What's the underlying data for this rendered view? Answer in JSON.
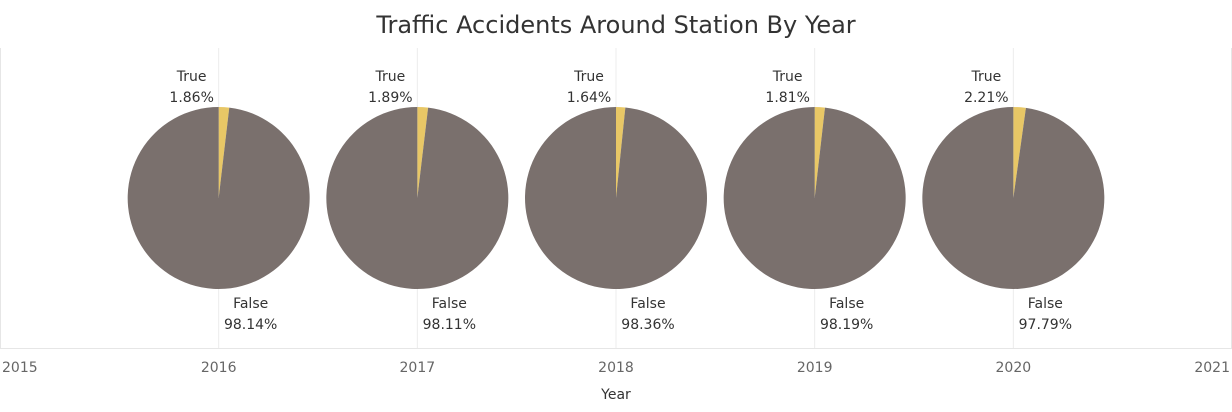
{
  "chart_data": {
    "type": "pie",
    "title": "Traffic Accidents Around Station By Year",
    "xlabel": "Year",
    "ylabel": "",
    "x_ticks": [
      "2015",
      "2016",
      "2017",
      "2018",
      "2019",
      "2020",
      "2021"
    ],
    "categories": [
      "True",
      "False"
    ],
    "pies": [
      {
        "year": "2016",
        "slices": [
          {
            "label": "True",
            "value": 1.86,
            "display": "1.86%"
          },
          {
            "label": "False",
            "value": 98.14,
            "display": "98.14%"
          }
        ]
      },
      {
        "year": "2017",
        "slices": [
          {
            "label": "True",
            "value": 1.89,
            "display": "1.89%"
          },
          {
            "label": "False",
            "value": 98.11,
            "display": "98.11%"
          }
        ]
      },
      {
        "year": "2018",
        "slices": [
          {
            "label": "True",
            "value": 1.64,
            "display": "1.64%"
          },
          {
            "label": "False",
            "value": 98.36,
            "display": "98.36%"
          }
        ]
      },
      {
        "year": "2019",
        "slices": [
          {
            "label": "True",
            "value": 1.81,
            "display": "1.81%"
          },
          {
            "label": "False",
            "value": 98.19,
            "display": "98.19%"
          }
        ]
      },
      {
        "year": "2020",
        "slices": [
          {
            "label": "True",
            "value": 2.21,
            "display": "2.21%"
          },
          {
            "label": "False",
            "value": 97.79,
            "display": "97.79%"
          }
        ]
      }
    ],
    "xlim": [
      2015,
      2021
    ],
    "grid": true,
    "colors": {
      "True": "#E8C766",
      "False": "#7A706D"
    }
  }
}
